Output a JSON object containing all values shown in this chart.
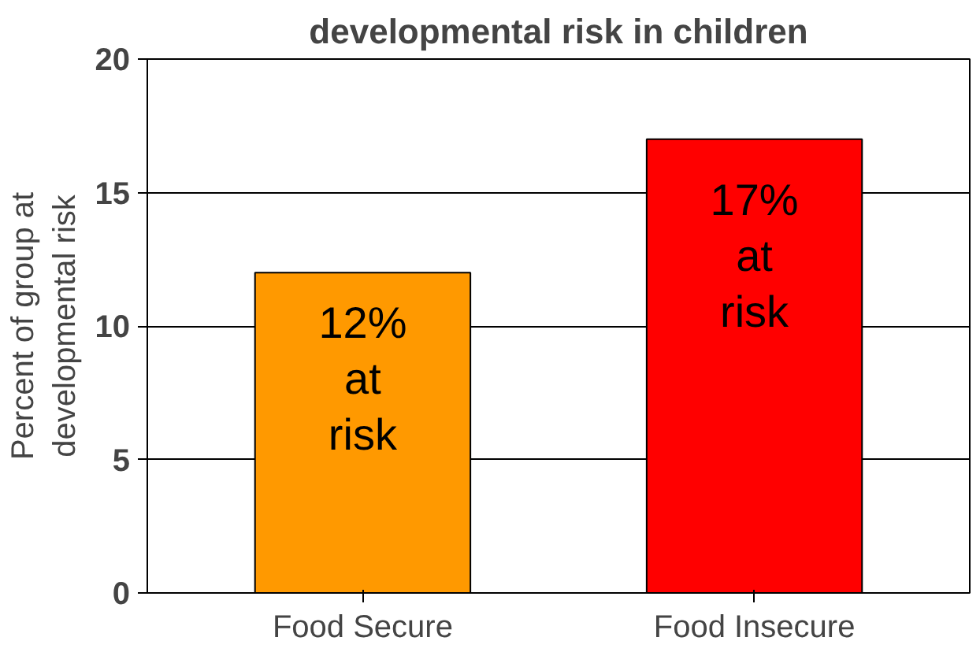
{
  "chart_data": {
    "type": "bar",
    "title": "developmental risk in children",
    "ylabel": "Percent of group at\ndevelopmental risk",
    "categories": [
      "Food Secure",
      "Food Insecure"
    ],
    "values": [
      12,
      17
    ],
    "colors": [
      "#ff9900",
      "#ff0000"
    ],
    "value_labels": [
      "12%\nat\nrisk",
      "17%\nat\nrisk"
    ],
    "ylim": [
      0,
      20
    ],
    "yticks": [
      0,
      5,
      10,
      15,
      20
    ],
    "grid": "y"
  }
}
